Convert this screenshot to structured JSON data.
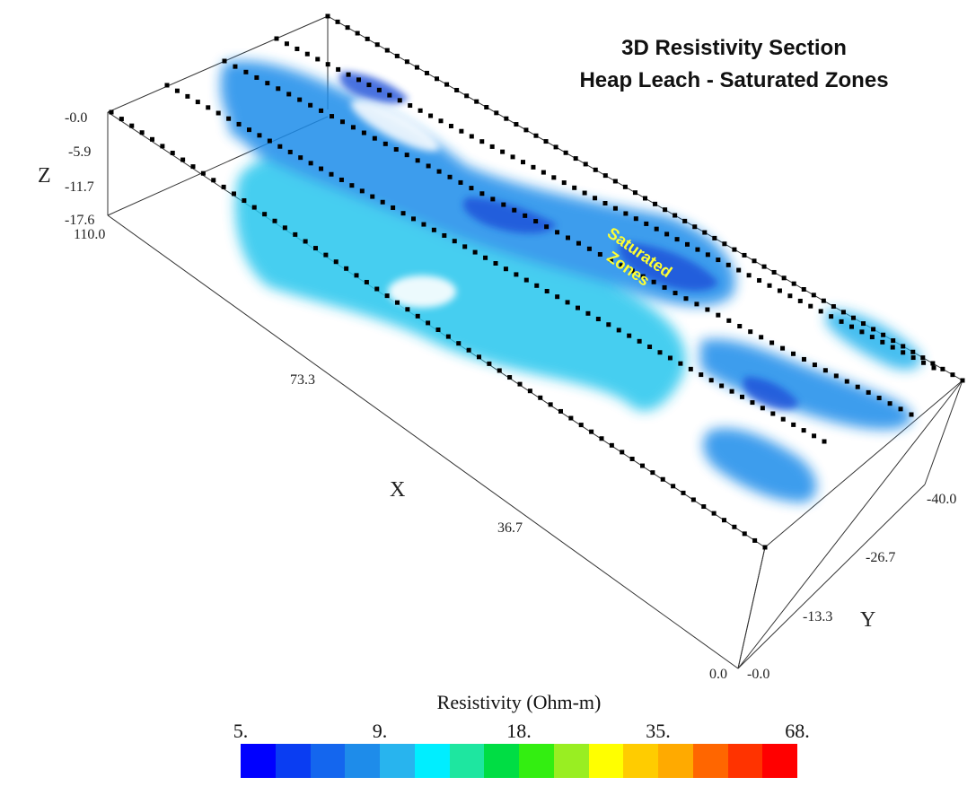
{
  "title": {
    "line1": "3D Resistivity Section",
    "line2": "Heap Leach - Saturated Zones"
  },
  "annotation": {
    "line1": "Saturated",
    "line2": "Zones"
  },
  "axes": {
    "x": {
      "name": "X",
      "ticks": [
        "110.0",
        "73.3",
        "36.7",
        "0.0"
      ]
    },
    "y": {
      "name": "Y",
      "ticks": [
        "-0.0",
        "-13.3",
        "-26.7",
        "-40.0"
      ]
    },
    "z": {
      "name": "Z",
      "ticks": [
        "-0.0",
        "-5.9",
        "-11.7",
        "-17.6"
      ]
    }
  },
  "legend": {
    "title": "Resistivity (Ohm-m)",
    "tick_labels": [
      "5.",
      "9.",
      "18.",
      "35.",
      "68."
    ],
    "colors": [
      "#0000ff",
      "#0a3df2",
      "#1466ee",
      "#1e8cea",
      "#28b4ee",
      "#00eeff",
      "#1ee6a0",
      "#00dd44",
      "#33ee11",
      "#99ee22",
      "#ffff00",
      "#ffcc00",
      "#ffaa00",
      "#ff6600",
      "#ff3300",
      "#ff0000"
    ]
  },
  "colors": {
    "low_resistivity": "#1e8cea",
    "very_low": "#1a4fd8",
    "moderate": "#28c6ee",
    "electrodes": "#000000",
    "frame": "#222222",
    "label": "#ffff33"
  }
}
